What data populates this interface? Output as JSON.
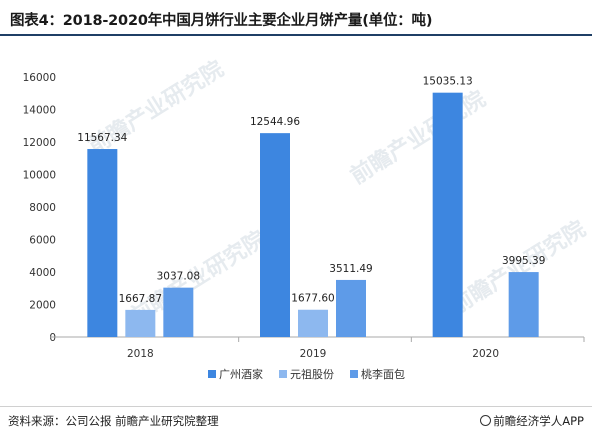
{
  "title": "图表4：2018-2020年中国月饼行业主要企业月饼产量(单位：吨)",
  "source": "资料来源：公司公报 前瞻产业研究院整理",
  "brand": "@前瞻经济学人APP",
  "watermark": "前瞻产业研究院",
  "colors": {
    "series_1": "#3d86e0",
    "series_2": "#8db8ef",
    "series_3": "#5e9be8",
    "axis": "#aaaaaa",
    "grid": "#e6e6e6"
  },
  "chart_data": {
    "type": "bar",
    "title": "图表4：2018-2020年中国月饼行业主要企业月饼产量(单位：吨)",
    "categories": [
      "2018",
      "2019",
      "2020"
    ],
    "series": [
      {
        "name": "广州酒家",
        "values": [
          11567.34,
          12544.96,
          15035.13
        ],
        "labels": [
          "11567.34",
          "12544.96",
          "15035.13"
        ]
      },
      {
        "name": "元祖股份",
        "values": [
          1667.87,
          1677.6,
          null
        ],
        "labels": [
          "1667.87",
          "1677.60",
          ""
        ]
      },
      {
        "name": "桃李面包",
        "values": [
          3037.08,
          3511.49,
          3995.39
        ],
        "labels": [
          "3037.08",
          "3511.49",
          "3995.39"
        ]
      }
    ],
    "ylim": [
      0,
      16000
    ],
    "yticks": [
      0,
      2000,
      4000,
      6000,
      8000,
      10000,
      12000,
      14000,
      16000
    ],
    "grid": false,
    "legend": "bottom"
  }
}
